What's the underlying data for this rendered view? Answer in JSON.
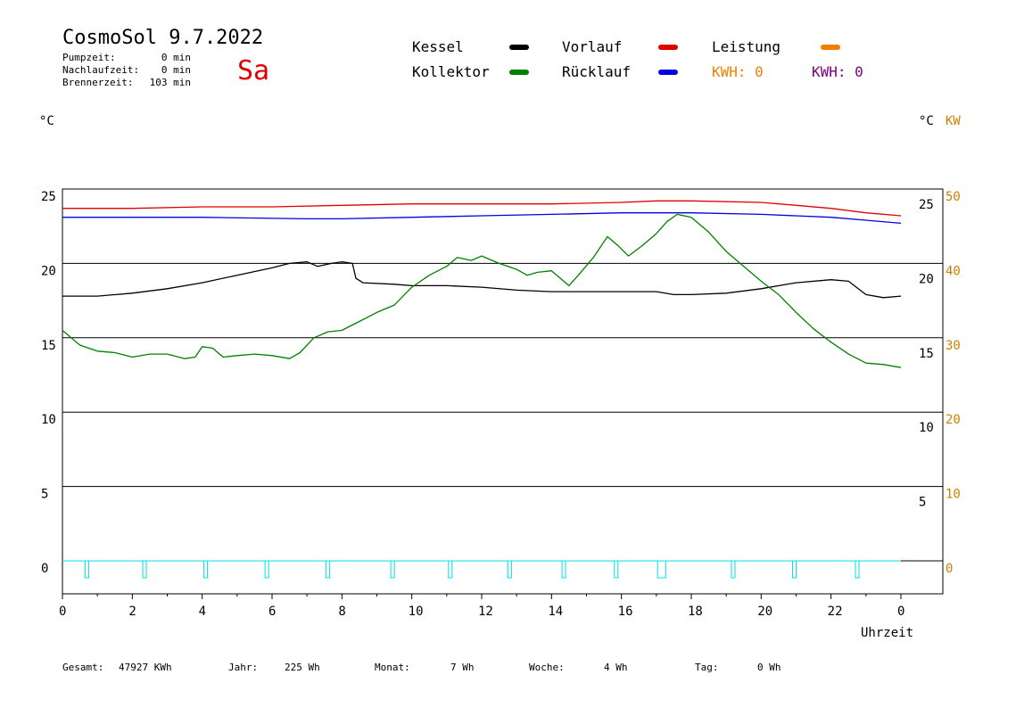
{
  "header": {
    "title": "CosmoSol 9.7.2022",
    "day": "Sa",
    "stats": [
      {
        "label": "Pumpzeit:",
        "value": "0 min"
      },
      {
        "label": "Nachlaufzeit:",
        "value": "0 min"
      },
      {
        "label": "Brennerzeit:",
        "value": "103 min"
      }
    ]
  },
  "legend": {
    "kessel": "Kessel",
    "kollektor": "Kollektor",
    "vorlauf": "Vorlauf",
    "ruecklauf": "Rücklauf",
    "leistung": "Leistung",
    "kwh1": "KWH: 0",
    "kwh2": "KWH: 0"
  },
  "units": {
    "left": "°C",
    "right_c": "°C",
    "right_kw": "KW"
  },
  "footer": {
    "gesamt_label": "Gesamt:",
    "gesamt_value": "47927 KWh",
    "jahr_label": "Jahr:",
    "jahr_value": "225 Wh",
    "monat_label": "Monat:",
    "monat_value": "7 Wh",
    "woche_label": "Woche:",
    "woche_value": "4 Wh",
    "tag_label": "Tag:",
    "tag_value": "0 Wh"
  },
  "colors": {
    "kessel": "#000000",
    "kollektor": "#008000",
    "vorlauf": "#e00000",
    "ruecklauf": "#0000e0",
    "leistung": "#f08000",
    "kwh2": "#800080",
    "pump": "#00e0e0",
    "axis_right": "#d08000"
  },
  "chart_data": {
    "type": "line",
    "title": "",
    "xlabel": "Uhrzeit",
    "ylabel": "°C",
    "x_ticks": [
      "0",
      "2",
      "4",
      "6",
      "8",
      "10",
      "12",
      "14",
      "16",
      "18",
      "20",
      "22",
      "0"
    ],
    "xlim": [
      0,
      24
    ],
    "ylim": [
      -1.7,
      25.5
    ],
    "y_ticks_left": [
      "0",
      "5",
      "10",
      "15",
      "20",
      "25"
    ],
    "y_ticks_right_c": [
      "5",
      "10",
      "15",
      "20",
      "25"
    ],
    "y_ticks_right_kw": [
      "0",
      "10",
      "20",
      "30",
      "40",
      "50"
    ],
    "grid": "horizontal",
    "series": [
      {
        "name": "Vorlauf",
        "color": "#e00000",
        "points": [
          [
            0,
            23.7
          ],
          [
            2,
            23.7
          ],
          [
            4,
            23.8
          ],
          [
            6,
            23.8
          ],
          [
            8,
            23.9
          ],
          [
            10,
            24.0
          ],
          [
            12,
            24.0
          ],
          [
            14,
            24.0
          ],
          [
            16,
            24.1
          ],
          [
            17,
            24.2
          ],
          [
            18,
            24.2
          ],
          [
            20,
            24.1
          ],
          [
            21,
            23.9
          ],
          [
            22,
            23.7
          ],
          [
            23,
            23.4
          ],
          [
            24,
            23.2
          ]
        ]
      },
      {
        "name": "Rücklauf",
        "color": "#0000e0",
        "points": [
          [
            0,
            23.1
          ],
          [
            4,
            23.1
          ],
          [
            7,
            23.0
          ],
          [
            8,
            23.0
          ],
          [
            10,
            23.1
          ],
          [
            12,
            23.2
          ],
          [
            14,
            23.3
          ],
          [
            16,
            23.4
          ],
          [
            18,
            23.4
          ],
          [
            20,
            23.3
          ],
          [
            22,
            23.1
          ],
          [
            23,
            22.9
          ],
          [
            24,
            22.7
          ]
        ]
      },
      {
        "name": "Kessel",
        "color": "#000000",
        "points": [
          [
            0,
            17.8
          ],
          [
            1,
            17.8
          ],
          [
            2,
            18.0
          ],
          [
            3,
            18.3
          ],
          [
            4,
            18.7
          ],
          [
            5,
            19.2
          ],
          [
            6,
            19.7
          ],
          [
            6.5,
            20.0
          ],
          [
            7,
            20.1
          ],
          [
            7.3,
            19.8
          ],
          [
            7.7,
            20.0
          ],
          [
            8.0,
            20.1
          ],
          [
            8.3,
            20.0
          ],
          [
            8.4,
            19.0
          ],
          [
            8.6,
            18.7
          ],
          [
            9.5,
            18.6
          ],
          [
            10,
            18.5
          ],
          [
            11,
            18.5
          ],
          [
            12,
            18.4
          ],
          [
            13,
            18.2
          ],
          [
            14,
            18.1
          ],
          [
            15,
            18.1
          ],
          [
            16,
            18.1
          ],
          [
            17,
            18.1
          ],
          [
            17.5,
            17.9
          ],
          [
            18,
            17.9
          ],
          [
            19,
            18.0
          ],
          [
            20,
            18.3
          ],
          [
            21,
            18.7
          ],
          [
            22,
            18.9
          ],
          [
            22.5,
            18.8
          ],
          [
            23,
            17.9
          ],
          [
            23.5,
            17.7
          ],
          [
            24,
            17.8
          ]
        ]
      },
      {
        "name": "Kollektor",
        "color": "#008000",
        "points": [
          [
            0,
            15.5
          ],
          [
            0.5,
            14.5
          ],
          [
            1,
            14.1
          ],
          [
            1.5,
            14.0
          ],
          [
            2,
            13.7
          ],
          [
            2.5,
            13.9
          ],
          [
            3,
            13.9
          ],
          [
            3.5,
            13.6
          ],
          [
            3.8,
            13.7
          ],
          [
            4,
            14.4
          ],
          [
            4.3,
            14.3
          ],
          [
            4.6,
            13.7
          ],
          [
            5,
            13.8
          ],
          [
            5.5,
            13.9
          ],
          [
            6,
            13.8
          ],
          [
            6.5,
            13.6
          ],
          [
            6.8,
            14.0
          ],
          [
            7.2,
            15.0
          ],
          [
            7.6,
            15.4
          ],
          [
            8,
            15.5
          ],
          [
            8.5,
            16.1
          ],
          [
            9,
            16.7
          ],
          [
            9.5,
            17.2
          ],
          [
            10,
            18.4
          ],
          [
            10.5,
            19.2
          ],
          [
            11,
            19.8
          ],
          [
            11.3,
            20.4
          ],
          [
            11.7,
            20.2
          ],
          [
            12,
            20.5
          ],
          [
            12.5,
            20.0
          ],
          [
            13,
            19.6
          ],
          [
            13.3,
            19.2
          ],
          [
            13.6,
            19.4
          ],
          [
            14,
            19.5
          ],
          [
            14.5,
            18.5
          ],
          [
            14.8,
            19.3
          ],
          [
            15.2,
            20.4
          ],
          [
            15.6,
            21.8
          ],
          [
            15.9,
            21.2
          ],
          [
            16.2,
            20.5
          ],
          [
            16.6,
            21.2
          ],
          [
            17,
            22.0
          ],
          [
            17.3,
            22.8
          ],
          [
            17.6,
            23.3
          ],
          [
            18,
            23.1
          ],
          [
            18.5,
            22.1
          ],
          [
            19,
            20.8
          ],
          [
            19.5,
            19.8
          ],
          [
            20,
            18.8
          ],
          [
            20.5,
            17.9
          ],
          [
            21,
            16.7
          ],
          [
            21.5,
            15.6
          ],
          [
            22,
            14.7
          ],
          [
            22.5,
            13.9
          ],
          [
            23,
            13.3
          ],
          [
            23.5,
            13.2
          ],
          [
            24,
            13.0
          ]
        ]
      }
    ],
    "pump_pulses": [
      0.7,
      2.35,
      4.1,
      5.85,
      7.6,
      9.45,
      11.1,
      12.8,
      14.35,
      15.85,
      17.15,
      19.2,
      20.95,
      22.75
    ]
  }
}
